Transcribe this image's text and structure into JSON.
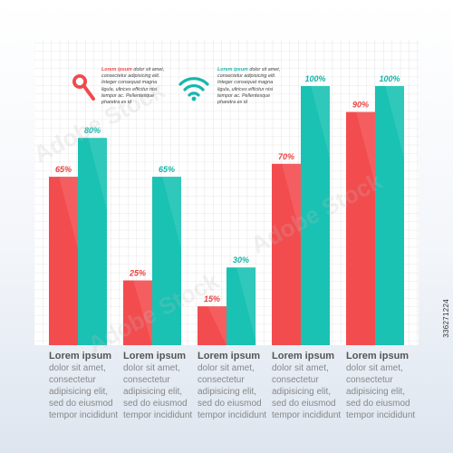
{
  "chart_data": {
    "type": "bar",
    "categories": [
      "Lorem ipsum",
      "Lorem ipsum",
      "Lorem ipsum",
      "Lorem ipsum",
      "Lorem ipsum"
    ],
    "series": [
      {
        "values": [
          65,
          25,
          15,
          70,
          90
        ],
        "labels": [
          "65%",
          "25%",
          "15%",
          "70%",
          "90%"
        ],
        "color": "#f34c4f"
      },
      {
        "values": [
          80,
          65,
          30,
          100,
          100
        ],
        "labels": [
          "80%",
          "65%",
          "30%",
          "100%",
          "100%"
        ],
        "color": "#19c2b3"
      }
    ],
    "ylim": [
      0,
      100
    ],
    "grid": true
  },
  "legend": [
    {
      "icon": "magnifier-icon",
      "color": "#ef4b4b",
      "lead": "Lorem ipsum",
      "text": "dolor sit amet, consectetur adipisicing elit. Integer consequat magna ligula, ultrices efficitur nisi tempor ac. Pellentesque pharetra ex id"
    },
    {
      "icon": "wifi-icon",
      "color": "#16b7ad",
      "lead": "Lorem ipsum",
      "text": "dolor sit amet, consectetur adipisicing elit. Integer consequat magna ligula, ultrices efficitur nisi tempor ac. Pellentesque pharetra ex id"
    }
  ],
  "captions": [
    {
      "title": "Lorem ipsum",
      "body": "dolor sit amet,\nconsectetur\nadipisicing elit,\nsed do eiusmod\ntempor incididunt"
    },
    {
      "title": "Lorem ipsum",
      "body": "dolor sit amet,\nconsectetur\nadipisicing elit,\nsed do eiusmod\ntempor incididunt"
    },
    {
      "title": "Lorem ipsum",
      "body": "dolor sit amet,\nconsectetur\nadipisicing elit,\nsed do eiusmod\ntempor incididunt"
    },
    {
      "title": "Lorem ipsum",
      "body": "dolor sit amet,\nconsectetur\nadipisicing elit,\nsed do eiusmod\ntempor incididunt"
    },
    {
      "title": "Lorem ipsum",
      "body": "dolor sit amet,\nconsectetur\nadipisicing elit,\nsed do eiusmod\ntempor incididunt"
    }
  ],
  "watermark": {
    "stock_id": "336271224",
    "brand": "Adobe Stock"
  }
}
